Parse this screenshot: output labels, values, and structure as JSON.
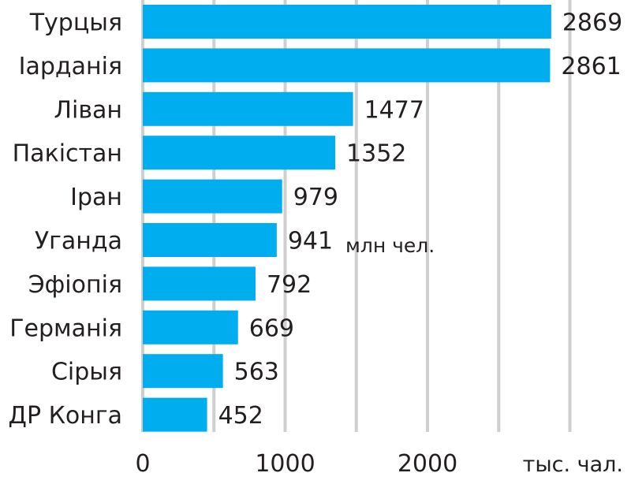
{
  "chart_data": {
    "type": "bar",
    "orientation": "horizontal",
    "categories": [
      "Турцыя",
      "Іарданія",
      "Ліван",
      "Пакістан",
      "Іран",
      "Уганда",
      "Эфіопія",
      "Германія",
      "Сірыя",
      "ДР Конга"
    ],
    "values": [
      2869,
      2861,
      1477,
      1352,
      979,
      941,
      792,
      669,
      563,
      452
    ],
    "xlim": [
      0,
      3000
    ],
    "xticks": [
      0,
      1000,
      2000
    ],
    "gridlines": [
      0,
      500,
      1000,
      1500,
      2000,
      2500,
      3000
    ],
    "grid": true,
    "xunit": "тыс. чал.",
    "annotation": "млн чел.",
    "colors": {
      "bar": "#00aeef",
      "grid": "#cfcfcf",
      "text": "#231f20"
    }
  }
}
